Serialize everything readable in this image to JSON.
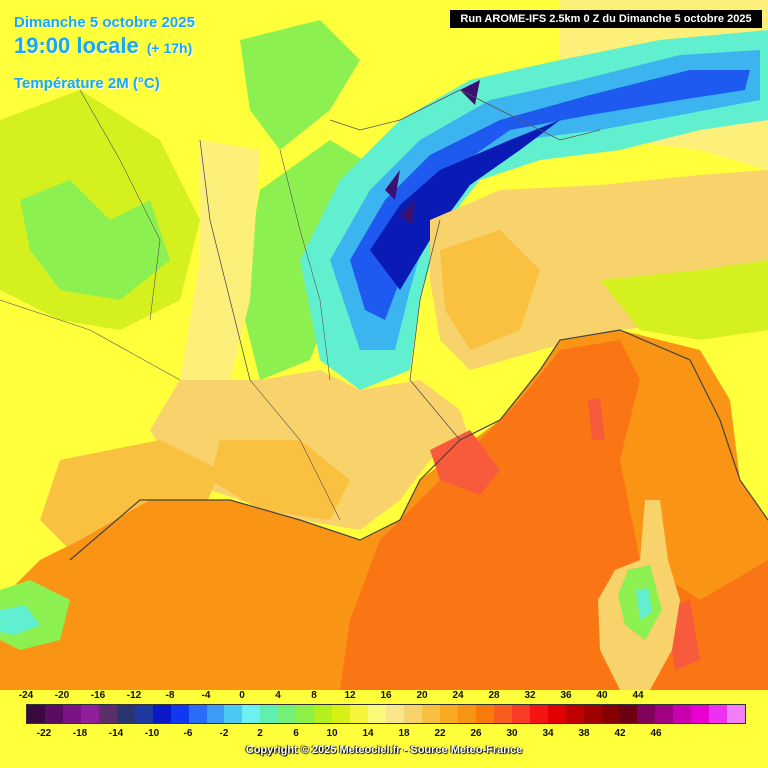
{
  "header": {
    "date": "Dimanche 5 octobre 2025",
    "time": "19:00 locale",
    "lead": "(+ 17h)",
    "variable": "Température 2M (°C)"
  },
  "run_banner": "Run AROME-IFS 2.5km 0 Z du Dimanche 5 octobre 2025",
  "footer": {
    "copyright": "Copyright © 2025 Meteociel.fr - Source Meteo-France"
  },
  "legend": {
    "top_labels": [
      "-24",
      "-20",
      "-16",
      "-12",
      "-8",
      "-4",
      "0",
      "4",
      "8",
      "12",
      "16",
      "20",
      "24",
      "28",
      "32",
      "36",
      "40",
      "44"
    ],
    "bottom_labels": [
      "-22",
      "-18",
      "-14",
      "-10",
      "-6",
      "-2",
      "2",
      "6",
      "10",
      "14",
      "18",
      "22",
      "26",
      "30",
      "34",
      "38",
      "42",
      "46"
    ],
    "colors": [
      "#3a0a3e",
      "#5a0c63",
      "#7a1484",
      "#8f1f9a",
      "#5b2f67",
      "#2a3570",
      "#1e3aa0",
      "#0a19c8",
      "#1038f0",
      "#2a6cf5",
      "#3c9cf5",
      "#4cc9f0",
      "#6ef0f0",
      "#5ff0b0",
      "#74f078",
      "#8ef046",
      "#b4f01e",
      "#d8f014",
      "#f5f53a",
      "#fafa7a",
      "#fbe58a",
      "#f8d26a",
      "#f8c040",
      "#f8aa20",
      "#f89414",
      "#f87a0a",
      "#f85c1e",
      "#f83c28",
      "#f51414",
      "#e00000",
      "#c00000",
      "#a00000",
      "#860000",
      "#6a0012",
      "#80005a",
      "#a00082",
      "#c800b0",
      "#e600d2",
      "#f030f0",
      "#f080f5"
    ]
  },
  "map": {
    "colors": {
      "sea_gulf": "#fa9414",
      "sea_warm": "#fa7614",
      "sea_hot": "#f85a3c",
      "land_warm": "#fac040",
      "land_mild": "#f8d26a",
      "plain": "#fcf07a",
      "yellow": "#ffff3c",
      "lime": "#d4f01e",
      "green": "#8cf050",
      "cyan": "#60f0d0",
      "sky": "#3cb4f0",
      "blue": "#1e5af0",
      "navy": "#0a1ab4",
      "peak": "#3a1070",
      "border": "#555555",
      "coast": "#444444"
    }
  }
}
